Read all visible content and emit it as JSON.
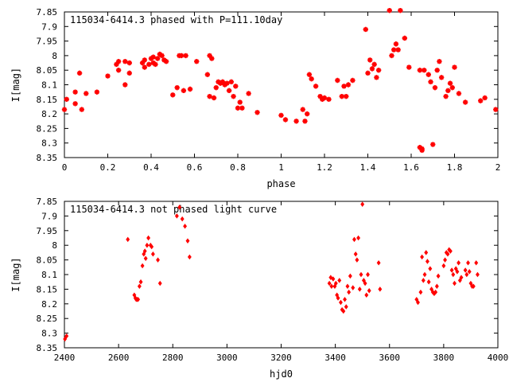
{
  "chart_data": [
    {
      "type": "scatter",
      "title": "115034-6414.3 phased with P=111.10day",
      "xlabel": "phase",
      "ylabel": "I[mag]",
      "xlim": [
        0,
        2
      ],
      "ylim": [
        7.85,
        8.35
      ],
      "y_inverted": true,
      "grid": false,
      "marker_color": "#ff0000",
      "xticks": [
        "0",
        "0.2",
        "0.4",
        "0.6",
        "0.8",
        "1",
        "1.2",
        "1.4",
        "1.6",
        "1.8",
        "2"
      ],
      "yticks": [
        "7.85",
        "7.9",
        "7.95",
        "8",
        "8.05",
        "8.1",
        "8.15",
        "8.2",
        "8.25",
        "8.3",
        "8.35"
      ],
      "x": [
        0.0,
        0.01,
        0.05,
        0.05,
        0.07,
        0.08,
        0.1,
        0.15,
        0.2,
        0.24,
        0.25,
        0.25,
        0.28,
        0.28,
        0.3,
        0.3,
        0.36,
        0.37,
        0.37,
        0.39,
        0.4,
        0.41,
        0.41,
        0.42,
        0.43,
        0.44,
        0.45,
        0.46,
        0.47,
        0.5,
        0.52,
        0.53,
        0.54,
        0.55,
        0.56,
        0.58,
        0.61,
        0.66,
        0.67,
        0.67,
        0.68,
        0.69,
        0.7,
        0.71,
        0.72,
        0.73,
        0.74,
        0.75,
        0.76,
        0.77,
        0.78,
        0.79,
        0.8,
        0.81,
        0.82,
        0.85,
        0.89,
        1.0,
        1.02,
        1.07,
        1.1,
        1.11,
        1.12,
        1.13,
        1.14,
        1.16,
        1.18,
        1.19,
        1.2,
        1.22,
        1.26,
        1.28,
        1.29,
        1.3,
        1.31,
        1.33,
        1.39,
        1.4,
        1.41,
        1.42,
        1.43,
        1.44,
        1.45,
        1.5,
        1.51,
        1.52,
        1.53,
        1.54,
        1.55,
        1.57,
        1.59,
        1.64,
        1.64,
        1.65,
        1.65,
        1.66,
        1.68,
        1.69,
        1.7,
        1.71,
        1.72,
        1.73,
        1.74,
        1.76,
        1.77,
        1.78,
        1.79,
        1.8,
        1.82,
        1.85,
        1.92,
        1.94,
        1.99
      ],
      "y": [
        8.185,
        8.15,
        8.125,
        8.165,
        8.06,
        8.185,
        8.13,
        8.125,
        8.07,
        8.03,
        8.02,
        8.05,
        8.1,
        8.02,
        8.06,
        8.025,
        8.025,
        8.015,
        8.04,
        8.03,
        8.01,
        8.005,
        8.025,
        8.03,
        8.01,
        7.995,
        8.0,
        8.015,
        8.02,
        8.135,
        8.11,
        8.0,
        8.0,
        8.12,
        8.0,
        8.115,
        8.02,
        8.065,
        8.14,
        8.0,
        8.01,
        8.145,
        8.11,
        8.09,
        8.095,
        8.09,
        8.1,
        8.095,
        8.12,
        8.09,
        8.14,
        8.105,
        8.18,
        8.16,
        8.18,
        8.13,
        8.195,
        8.205,
        8.22,
        8.225,
        8.185,
        8.225,
        8.2,
        8.065,
        8.08,
        8.105,
        8.14,
        8.15,
        8.145,
        8.15,
        8.085,
        8.14,
        8.105,
        8.14,
        8.1,
        8.085,
        7.91,
        8.06,
        8.015,
        8.045,
        8.03,
        8.075,
        8.05,
        7.845,
        8.0,
        7.98,
        7.96,
        7.98,
        7.845,
        7.94,
        8.04,
        8.05,
        8.315,
        8.325,
        8.32,
        8.05,
        8.065,
        8.09,
        8.305,
        8.11,
        8.05,
        8.02,
        8.075,
        8.14,
        8.12,
        8.095,
        8.11,
        8.04,
        8.13,
        8.16,
        8.155,
        8.145,
        8.185
      ]
    },
    {
      "type": "scatter",
      "title": "115034-6414.3 not phased light curve",
      "xlabel": "hjd0",
      "ylabel": "I[mag]",
      "xlim": [
        2400,
        4000
      ],
      "ylim": [
        7.85,
        8.35
      ],
      "y_inverted": true,
      "grid": false,
      "marker_color": "#ff0000",
      "xticks": [
        "2400",
        "2600",
        "2800",
        "3000",
        "3200",
        "3400",
        "3600",
        "3800",
        "4000"
      ],
      "yticks": [
        "7.85",
        "7.9",
        "7.95",
        "8",
        "8.05",
        "8.1",
        "8.15",
        "8.2",
        "8.25",
        "8.3",
        "8.35"
      ],
      "x": [
        2402,
        2408,
        2634,
        2658,
        2662,
        2665,
        2668,
        2672,
        2677,
        2682,
        2688,
        2693,
        2697,
        2700,
        2705,
        2710,
        2718,
        2722,
        2727,
        2745,
        2753,
        2815,
        2825,
        2835,
        2845,
        2855,
        2862,
        3378,
        3383,
        3386,
        3392,
        3398,
        3402,
        3406,
        3410,
        3415,
        3420,
        3425,
        3430,
        3435,
        3440,
        3445,
        3450,
        3455,
        3465,
        3470,
        3475,
        3480,
        3485,
        3490,
        3495,
        3500,
        3505,
        3510,
        3515,
        3520,
        3525,
        3560,
        3565,
        3700,
        3705,
        3715,
        3720,
        3725,
        3730,
        3735,
        3740,
        3745,
        3750,
        3755,
        3760,
        3765,
        3770,
        3775,
        3780,
        3800,
        3805,
        3810,
        3815,
        3820,
        3825,
        3830,
        3835,
        3840,
        3845,
        3850,
        3855,
        3860,
        3865,
        3880,
        3885,
        3890,
        3895,
        3900,
        3905,
        3910,
        3920,
        3925
      ],
      "y": [
        8.32,
        8.31,
        7.98,
        8.17,
        8.18,
        8.185,
        8.185,
        8.185,
        8.14,
        8.125,
        8.07,
        8.03,
        8.02,
        8.045,
        8.0,
        7.975,
        8.0,
        8.005,
        8.03,
        8.05,
        8.13,
        7.9,
        7.87,
        7.91,
        7.935,
        7.985,
        8.04,
        8.13,
        8.11,
        8.14,
        8.115,
        8.14,
        8.13,
        8.17,
        8.18,
        8.12,
        8.195,
        8.22,
        8.225,
        8.185,
        8.21,
        8.14,
        8.16,
        8.105,
        8.145,
        7.98,
        8.03,
        8.05,
        7.975,
        8.15,
        8.1,
        7.86,
        8.12,
        8.13,
        8.17,
        8.1,
        8.155,
        8.06,
        8.15,
        8.185,
        8.195,
        8.16,
        8.04,
        8.12,
        8.1,
        8.025,
        8.055,
        8.125,
        8.08,
        8.15,
        8.16,
        8.165,
        8.16,
        8.14,
        8.105,
        8.07,
        8.05,
        8.025,
        8.03,
        8.015,
        8.02,
        8.085,
        8.1,
        8.13,
        8.08,
        8.09,
        8.06,
        8.12,
        8.11,
        8.085,
        8.1,
        8.06,
        8.09,
        8.13,
        8.14,
        8.14,
        8.06,
        8.1
      ]
    }
  ]
}
